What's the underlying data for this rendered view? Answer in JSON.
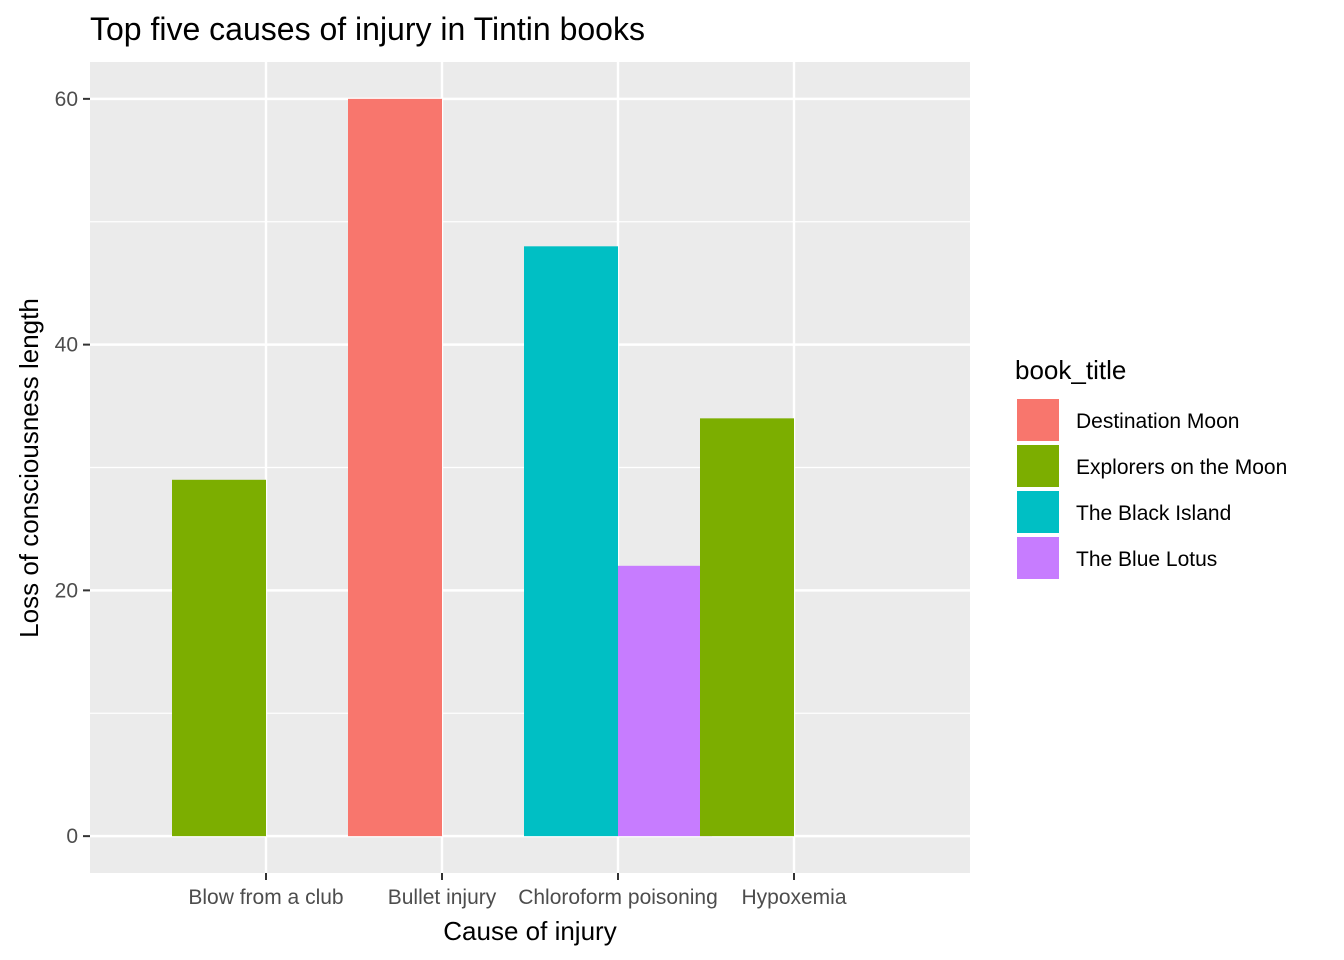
{
  "chart_data": {
    "type": "bar",
    "title": "Top five causes of injury in Tintin books",
    "xlabel": "Cause of injury",
    "ylabel": "Loss of consciousness length",
    "categories": [
      "Blow from a club",
      "Bullet injury",
      "Chloroform poisoning",
      "Hypoxemia"
    ],
    "ylim": [
      -3,
      63
    ],
    "yticks": [
      0,
      20,
      40,
      60
    ],
    "grid": true,
    "legend_title": "book_title",
    "legend_position": "right",
    "series": [
      {
        "name": "Destination Moon",
        "color": "#F8766D",
        "values": [
          null,
          60,
          null,
          null
        ]
      },
      {
        "name": "Explorers on the Moon",
        "color": "#7CAE00",
        "values": [
          29,
          null,
          null,
          34
        ]
      },
      {
        "name": "The Black Island",
        "color": "#00BFC4",
        "values": [
          null,
          null,
          48,
          null
        ]
      },
      {
        "name": "The Blue Lotus",
        "color": "#C77CFF",
        "values": [
          null,
          null,
          22,
          null
        ]
      }
    ],
    "bars": [
      {
        "category": "Blow from a club",
        "series": "Explorers on the Moon",
        "value": 29,
        "slot": 0
      },
      {
        "category": "Bullet injury",
        "series": "Destination Moon",
        "value": 60,
        "slot": 0
      },
      {
        "category": "Chloroform poisoning",
        "series": "The Black Island",
        "value": 48,
        "slot": 0
      },
      {
        "category": "Chloroform poisoning",
        "series": "The Blue Lotus",
        "value": 22,
        "slot": 1
      },
      {
        "category": "Hypoxemia",
        "series": "Explorers on the Moon",
        "value": 34,
        "slot": 0
      }
    ],
    "panel_background": "#EBEBEB",
    "grid_color": "#FFFFFF"
  }
}
